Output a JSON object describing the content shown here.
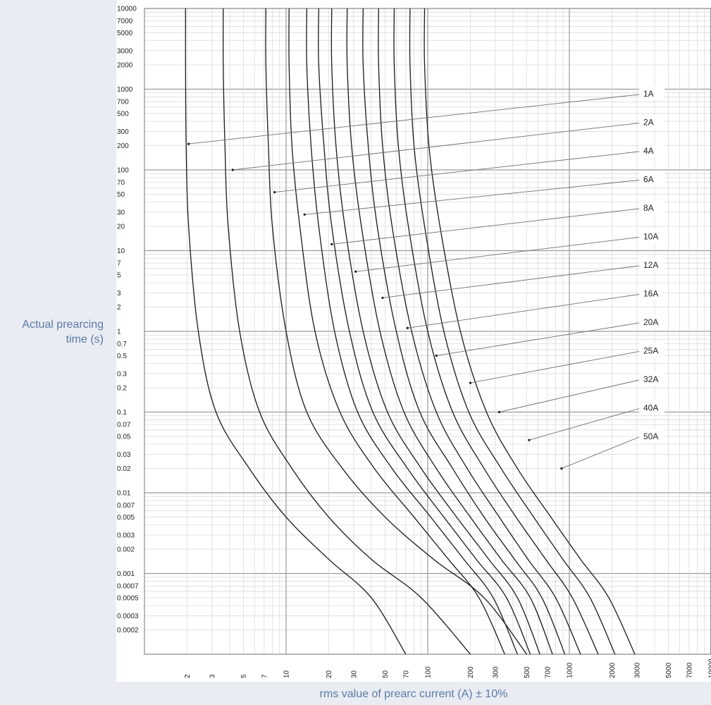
{
  "chart_data": {
    "type": "line",
    "title": "",
    "xlabel": "rms value of prearc current (A) ± 10%",
    "ylabel": "Actual prearcing time (s)",
    "xscale": "log",
    "yscale": "log",
    "xlim": [
      1,
      10000
    ],
    "ylim": [
      0.0001,
      10000
    ],
    "grid": true,
    "x_ticks": [
      "2",
      "3",
      "5",
      "7",
      "10",
      "20",
      "30",
      "50",
      "70",
      "100",
      "200",
      "300",
      "500",
      "700",
      "1000",
      "2000",
      "3000",
      "5000",
      "7000",
      "10000"
    ],
    "y_ticks": [
      "10000",
      "7000",
      "5000",
      "3000",
      "2000",
      "1000",
      "700",
      "500",
      "300",
      "200",
      "100",
      "70",
      "50",
      "30",
      "20",
      "10",
      "7",
      "5",
      "3",
      "2",
      "1",
      "0.7",
      "0.5",
      "0.3",
      "0.2",
      "0.1",
      "0.07",
      "0.05",
      "0.03",
      "0.02",
      "0.01",
      "0.007",
      "0.005",
      "0.003",
      "0.002",
      "0.001",
      "0.0007",
      "0.0005",
      "0.0003",
      "0.0002"
    ],
    "series": [
      {
        "name": "1A",
        "x": [
          1.95,
          1.95,
          1.97,
          2.05,
          2.4,
          3.2,
          5.5,
          10,
          20,
          40,
          70
        ],
        "y": [
          10000,
          2000,
          200,
          20,
          1,
          0.1,
          0.02,
          0.005,
          0.0015,
          0.0005,
          0.0001
        ],
        "marker": [
          2.05,
          210
        ]
      },
      {
        "name": "2A",
        "x": [
          3.6,
          3.6,
          3.7,
          3.9,
          4.7,
          6.5,
          11,
          20,
          40,
          90,
          200
        ],
        "y": [
          10000,
          2000,
          200,
          20,
          1,
          0.1,
          0.02,
          0.005,
          0.0015,
          0.0005,
          0.0001
        ],
        "marker": [
          4.2,
          100
        ]
      },
      {
        "name": "4A",
        "x": [
          7.2,
          7.2,
          7.5,
          8,
          10,
          14,
          25,
          50,
          110,
          250,
          500
        ],
        "y": [
          10000,
          2000,
          200,
          20,
          1,
          0.1,
          0.02,
          0.005,
          0.0015,
          0.0005,
          0.0001
        ],
        "marker": [
          8.3,
          53
        ]
      },
      {
        "name": "6A",
        "x": [
          10.5,
          10.5,
          11,
          12.5,
          16,
          24,
          42,
          80,
          140,
          230,
          350
        ],
        "y": [
          10000,
          2000,
          200,
          20,
          1,
          0.1,
          0.02,
          0.005,
          0.0015,
          0.0005,
          0.0001
        ],
        "marker": [
          13.5,
          28
        ]
      },
      {
        "name": "8A",
        "x": [
          14,
          14,
          15,
          17,
          22,
          32,
          56,
          105,
          180,
          290,
          430
        ],
        "y": [
          10000,
          2000,
          200,
          20,
          1,
          0.1,
          0.02,
          0.005,
          0.0015,
          0.0005,
          0.0001
        ],
        "marker": [
          21,
          12
        ]
      },
      {
        "name": "10A",
        "x": [
          17,
          17,
          18.5,
          21,
          28,
          41,
          72,
          130,
          220,
          360,
          530
        ],
        "y": [
          10000,
          2000,
          200,
          20,
          1,
          0.1,
          0.02,
          0.005,
          0.0015,
          0.0005,
          0.0001
        ],
        "marker": [
          31,
          5.5
        ]
      },
      {
        "name": "12A",
        "x": [
          21,
          21,
          22.5,
          26,
          35,
          52,
          90,
          160,
          270,
          430,
          620
        ],
        "y": [
          10000,
          2000,
          200,
          20,
          1,
          0.1,
          0.02,
          0.005,
          0.0015,
          0.0005,
          0.0001
        ],
        "marker": [
          48,
          2.6
        ]
      },
      {
        "name": "16A",
        "x": [
          27,
          27,
          29,
          34,
          46,
          68,
          115,
          200,
          330,
          530,
          760
        ],
        "y": [
          10000,
          2000,
          200,
          20,
          1,
          0.1,
          0.02,
          0.005,
          0.0015,
          0.0005,
          0.0001
        ],
        "marker": [
          72,
          1.1
        ]
      },
      {
        "name": "20A",
        "x": [
          35,
          35,
          38,
          44,
          60,
          88,
          150,
          250,
          410,
          640,
          930
        ],
        "y": [
          10000,
          2000,
          200,
          20,
          1,
          0.1,
          0.02,
          0.005,
          0.0015,
          0.0005,
          0.0001
        ],
        "marker": [
          115,
          0.5
        ]
      },
      {
        "name": "25A",
        "x": [
          45,
          45,
          48,
          56,
          77,
          115,
          190,
          320,
          510,
          800,
          1200
        ],
        "y": [
          10000,
          2000,
          200,
          20,
          1,
          0.1,
          0.02,
          0.005,
          0.0015,
          0.0005,
          0.0001
        ],
        "marker": [
          200,
          0.23
        ]
      },
      {
        "name": "32A",
        "x": [
          58,
          58,
          62,
          73,
          100,
          150,
          250,
          420,
          680,
          1050,
          1600
        ],
        "y": [
          10000,
          2000,
          200,
          20,
          1,
          0.1,
          0.02,
          0.005,
          0.0015,
          0.0005,
          0.0001
        ],
        "marker": [
          320,
          0.1
        ]
      },
      {
        "name": "40A",
        "x": [
          75,
          75,
          80,
          95,
          130,
          195,
          330,
          560,
          900,
          1400,
          2100
        ],
        "y": [
          10000,
          2000,
          200,
          20,
          1,
          0.1,
          0.02,
          0.005,
          0.0015,
          0.0005,
          0.0001
        ],
        "marker": [
          520,
          0.045
        ]
      },
      {
        "name": "50A",
        "x": [
          95,
          95,
          102,
          122,
          170,
          260,
          430,
          740,
          1200,
          1900,
          2900
        ],
        "y": [
          10000,
          2000,
          200,
          20,
          1,
          0.1,
          0.02,
          0.005,
          0.0015,
          0.0005,
          0.0001
        ],
        "marker": [
          880,
          0.02
        ]
      }
    ],
    "label_anchor_y": [
      1.0,
      0.4,
      0.9,
      0.7,
      0.5,
      0.3,
      0.1,
      0.9,
      0.7,
      0.5,
      0.3,
      0.1,
      0.9
    ],
    "line_color": "#1a1a1a",
    "grid_color_major": "#9a9a9a",
    "grid_color_minor": "#d6d6d6",
    "label_text_color": "#5a7ba6",
    "panel_background": "#ffffff",
    "page_background": "#e9ecf3"
  }
}
